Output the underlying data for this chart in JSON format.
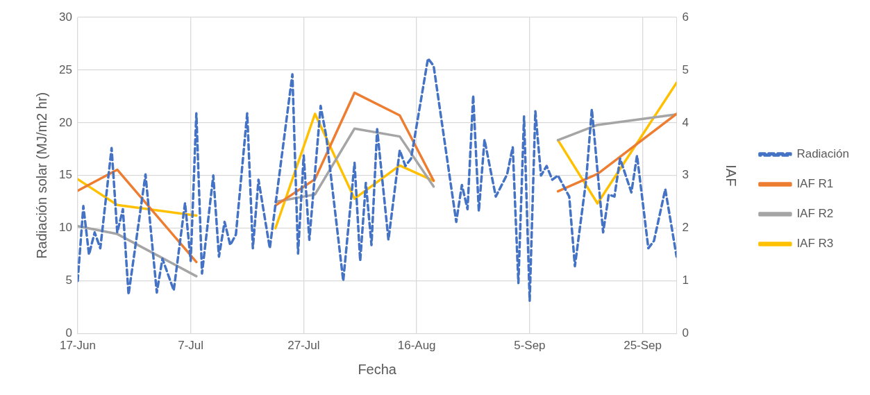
{
  "chart_data": {
    "type": "line",
    "xlabel": "Fecha",
    "ylabel": "Radiación solar (MJ/m2 hr)",
    "y2label": "IAF",
    "xlim": [
      "--06-17",
      "--10-01"
    ],
    "xticks": [
      {
        "value": "--06-17",
        "label": "17-Jun"
      },
      {
        "value": "--07-07",
        "label": "7-Jul"
      },
      {
        "value": "--07-27",
        "label": "27-Jul"
      },
      {
        "value": "--08-16",
        "label": "16-Aug"
      },
      {
        "value": "--09-05",
        "label": "5-Sep"
      },
      {
        "value": "--09-25",
        "label": "25-Sep"
      }
    ],
    "ylim": [
      0,
      30
    ],
    "yticks": [
      0,
      5,
      10,
      15,
      20,
      25,
      30
    ],
    "y2lim": [
      0,
      6
    ],
    "y2ticks": [
      0,
      1,
      2,
      3,
      4,
      5,
      6
    ],
    "grid": true,
    "legend": "right",
    "marker": "none",
    "series": [
      {
        "name": "Radiación",
        "color": "#4472c4",
        "line_style": "dashed",
        "x": [
          "--06-17",
          "--06-18",
          "--06-19",
          "--06-20",
          "--06-21",
          "--06-23",
          "--06-24",
          "--06-25",
          "--06-26",
          "--06-29",
          "--07-01",
          "--07-02",
          "--07-04",
          "--07-06",
          "--07-07",
          "--07-08",
          "--07-09",
          "--07-11",
          "--07-12",
          "--07-13",
          "--07-14",
          "--07-15",
          "--07-17",
          "--07-18",
          "--07-19",
          "--07-21",
          "--07-25",
          "--07-26",
          "--07-27",
          "--07-28",
          "--07-30",
          "--07-31",
          "--08-03",
          "--08-05",
          "--08-06",
          "--08-07",
          "--08-08",
          "--08-09",
          "--08-11",
          "--08-13",
          "--08-14",
          "--08-15",
          "--08-18",
          "--08-19",
          "--08-23",
          "--08-24",
          "--08-25",
          "--08-26",
          "--08-27",
          "--08-28",
          "--08-30",
          "--09-01",
          "--09-02",
          "--09-03",
          "--09-04",
          "--09-05",
          "--09-06",
          "--09-07",
          "--09-08",
          "--09-09",
          "--09-10",
          "--09-12",
          "--09-13",
          "--09-15",
          "--09-16",
          "--09-18",
          "--09-19",
          "--09-20",
          "--09-21",
          "--09-23",
          "--09-24",
          "--09-26",
          "--09-27",
          "--09-29",
          "--10-01"
        ],
        "values": [
          5.0,
          12.1,
          7.5,
          9.6,
          8.1,
          17.6,
          9.6,
          11.8,
          3.7,
          15.1,
          3.9,
          7.1,
          4.1,
          12.4,
          6.9,
          20.9,
          5.7,
          15.0,
          7.3,
          10.6,
          8.4,
          9.4,
          20.9,
          8.1,
          14.6,
          8.1,
          24.6,
          7.6,
          16.9,
          8.9,
          21.6,
          18.7,
          5.0,
          16.2,
          6.9,
          14.3,
          8.4,
          19.4,
          8.9,
          17.4,
          15.9,
          16.6,
          26.1,
          25.4,
          10.6,
          14.1,
          11.8,
          22.6,
          11.6,
          18.4,
          13.0,
          15.1,
          17.7,
          4.8,
          20.6,
          3.1,
          21.1,
          15.0,
          15.9,
          14.6,
          15.0,
          13.0,
          6.4,
          14.6,
          21.3,
          9.6,
          13.2,
          13.0,
          16.6,
          13.4,
          16.9,
          8.1,
          8.8,
          13.7,
          7.3
        ]
      },
      {
        "name": "IAF R1",
        "color": "#ed7d31",
        "line_style": "solid",
        "axis": "y2",
        "x": [
          "--06-17",
          "--06-24",
          "--07-08",
          "--07-15",
          "--07-22",
          "--07-29",
          "--08-05",
          "--08-13",
          "--08-19",
          "--08-31",
          "--09-10",
          "--09-17",
          "--10-01"
        ],
        "values": [
          2.71,
          3.11,
          1.36,
          null,
          2.43,
          2.93,
          4.57,
          4.14,
          2.9,
          null,
          2.7,
          3.03,
          4.17
        ]
      },
      {
        "name": "IAF R2",
        "color": "#a5a5a5",
        "line_style": "solid",
        "axis": "y2",
        "x": [
          "--06-17",
          "--06-24",
          "--07-08",
          "--07-15",
          "--07-22",
          "--07-29",
          "--08-05",
          "--08-13",
          "--08-19",
          "--08-31",
          "--09-10",
          "--09-17",
          "--10-01"
        ],
        "values": [
          2.04,
          1.89,
          1.09,
          null,
          2.5,
          2.64,
          3.89,
          3.74,
          2.79,
          null,
          3.67,
          3.96,
          4.16
        ]
      },
      {
        "name": "IAF R3",
        "color": "#ffc000",
        "line_style": "solid",
        "axis": "y2",
        "x": [
          "--06-17",
          "--06-24",
          "--07-08",
          "--07-15",
          "--07-22",
          "--07-29",
          "--08-05",
          "--08-13",
          "--08-19",
          "--08-31",
          "--09-10",
          "--09-17",
          "--10-01"
        ],
        "values": [
          2.93,
          2.44,
          2.24,
          null,
          2.0,
          4.17,
          2.56,
          3.19,
          2.9,
          null,
          3.67,
          2.47,
          4.76
        ]
      }
    ]
  }
}
